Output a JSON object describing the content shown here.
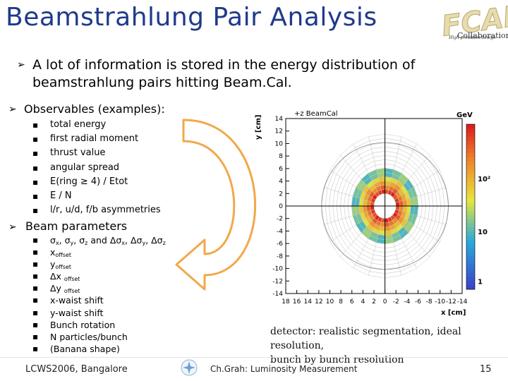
{
  "header": {
    "title": "Beamstrahlung Pair Analysis",
    "logo_text": "FCAL",
    "logo_collab": "Collaboration",
    "logo_sub": "High precision design"
  },
  "lead_text": "A lot of information is stored in the energy distribution of beamstrahlung pairs hitting Beam.Cal.",
  "observables": {
    "heading": "Observables (examples):",
    "items": [
      "total energy",
      "first radial moment",
      "thrust value",
      "angular spread",
      "E(ring ≥ 4) / Etot",
      "E / N",
      "l/r, u/d, f/b asymmetries"
    ]
  },
  "beam": {
    "heading": "Beam parameters",
    "items": [
      "x-waist shift",
      "y-waist shift",
      "Bunch rotation",
      "N particles/bunch",
      "(Banana shape)"
    ]
  },
  "chart_data": {
    "type": "heatmap",
    "title": "+z BeamCal",
    "xlabel": "x [cm]",
    "ylabel": "y [cm]",
    "x_ticks": [
      18,
      16,
      14,
      12,
      10,
      8,
      6,
      4,
      2,
      0,
      -2,
      -4,
      -6,
      -8,
      -10,
      -12,
      -14
    ],
    "y_ticks": [
      14,
      12,
      10,
      8,
      6,
      4,
      2,
      0,
      -2,
      -4,
      -6,
      -8,
      -10,
      -12,
      -14
    ],
    "xlim": [
      18,
      -14
    ],
    "ylim": [
      -14,
      14
    ],
    "colorbar_unit": "GeV",
    "colorbar_labels": [
      "10²",
      "10",
      "1"
    ],
    "colormap": "blue-red"
  },
  "detector_note": {
    "line1": "detector: realistic segmentation, ideal resolution,",
    "line2": "bunch by bunch resolution"
  },
  "footer": {
    "left": "LCWS2006, Bangalore",
    "center": "Ch.Grah: Luminosity Measurement",
    "page": "15"
  },
  "colors": {
    "title": "#1f3a8a",
    "arrow": "#f2a84a"
  }
}
